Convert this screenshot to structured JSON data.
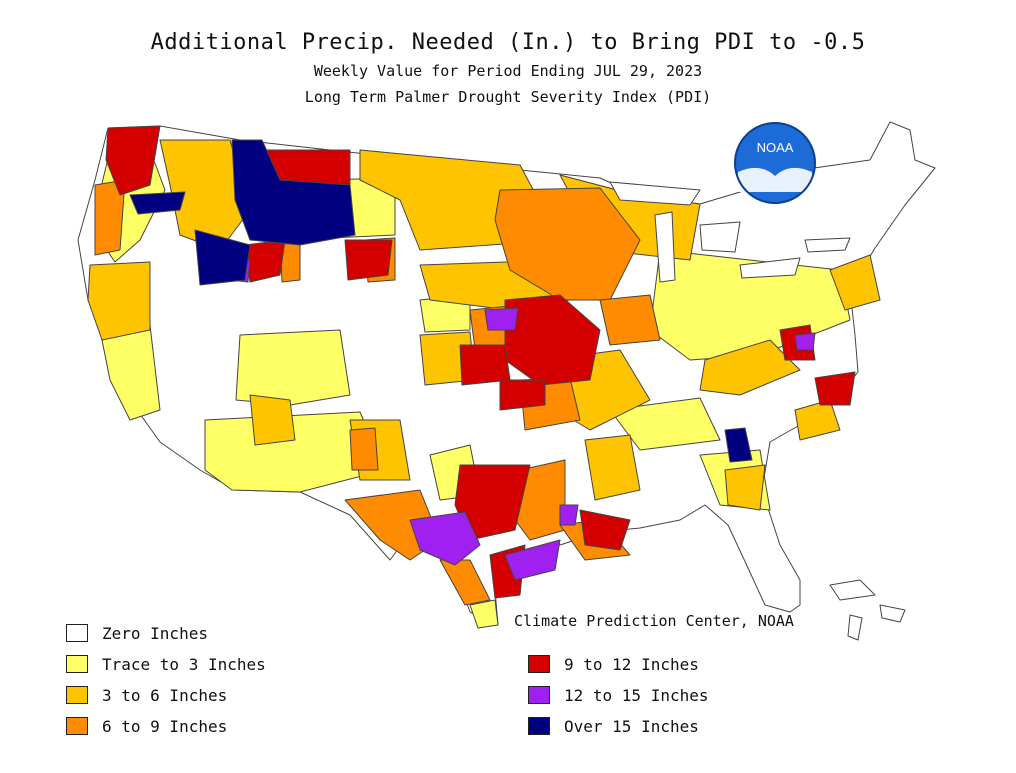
{
  "header": {
    "title": "Additional Precip. Needed (In.) to Bring PDI to -0.5",
    "subtitle": "Weekly Value for Period Ending JUL 29, 2023",
    "index_name": "Long Term Palmer Drought Severity Index (PDI)"
  },
  "logo": {
    "text": "NOAA",
    "icon": "noaa-logo-icon"
  },
  "credit": "Climate Prediction Center, NOAA",
  "colors": {
    "zero": "#ffffff",
    "trace": "#ffff66",
    "three_six": "#ffc400",
    "six_nine": "#ff8c00",
    "nine_twelve": "#d40000",
    "twelve_fifteen": "#a020f0",
    "over_fifteen": "#000080",
    "border": "#444444",
    "logo_blue": "#1c6bd6"
  },
  "legend": {
    "items": [
      {
        "label": "Zero Inches",
        "color": "#ffffff"
      },
      {
        "label": "Trace to 3 Inches",
        "color": "#ffff66"
      },
      {
        "label": "3 to 6 Inches",
        "color": "#ffc400"
      },
      {
        "label": "6 to 9 Inches",
        "color": "#ff8c00"
      },
      {
        "label": "9 to 12 Inches",
        "color": "#d40000"
      },
      {
        "label": "12 to 15 Inches",
        "color": "#a020f0"
      },
      {
        "label": "Over 15 Inches",
        "color": "#000080"
      }
    ]
  }
}
